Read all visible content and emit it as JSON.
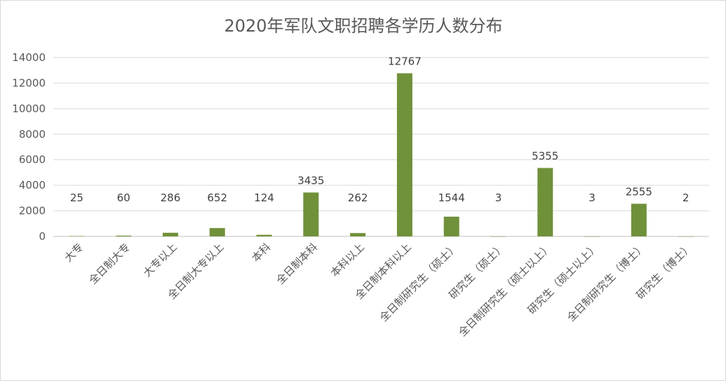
{
  "chart_data": {
    "type": "bar",
    "title": "2020年军队文职招聘各学历人数分布",
    "xlabel": "",
    "ylabel": "",
    "ylim": [
      0,
      14000
    ],
    "yticks": [
      0,
      2000,
      4000,
      6000,
      8000,
      10000,
      12000,
      14000
    ],
    "grid": true,
    "legend": "none",
    "bar_color": "#70913a",
    "categories": [
      "大专",
      "全日制大专",
      "大专以上",
      "全日制大专以上",
      "本科",
      "全日制本科",
      "本科以上",
      "全日制本科以上",
      "全日制研究生（硕士）",
      "研究生（硕士）",
      "全日制研究生（硕士以上）",
      "研究生（硕士以上）",
      "全日制研究生（博士）",
      "研究生（博士）"
    ],
    "values": [
      25,
      60,
      286,
      652,
      124,
      3435,
      262,
      12767,
      1544,
      3,
      5355,
      3,
      2555,
      2
    ]
  }
}
